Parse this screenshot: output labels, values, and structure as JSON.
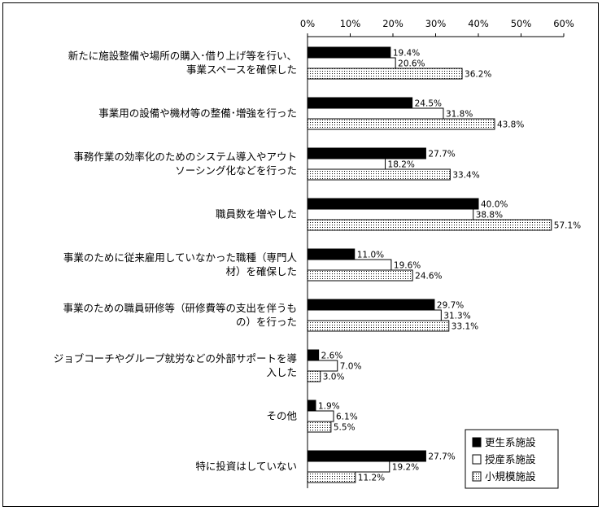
{
  "chart_data": {
    "type": "bar",
    "orientation": "horizontal",
    "xlim": [
      0,
      60
    ],
    "x_ticks": [
      "0%",
      "10%",
      "20%",
      "30%",
      "40%",
      "50%",
      "60%"
    ],
    "grid": false,
    "legend_position": "bottom-right",
    "categories": [
      [
        "新たに施設整備や場所の購入･借り上げ等を行い、",
        "事業スペースを確保した"
      ],
      [
        "事業用の設備や機材等の整備･増強を行った"
      ],
      [
        "事務作業の効率化のためのシステム導入やアウト",
        "ソーシング化などを行った"
      ],
      [
        "職員数を増やした"
      ],
      [
        "事業のために従来雇用していなかった職種（専門人",
        "材）を確保した"
      ],
      [
        "事業のための職員研修等（研修費等の支出を伴うも",
        "の）を行った"
      ],
      [
        "ジョブコーチやグループ就労などの外部サポートを導",
        "入した"
      ],
      [
        "その他"
      ],
      [
        "特に投資はしていない"
      ]
    ],
    "series": [
      {
        "name": "更生系施設",
        "fill": "solid",
        "color": "#000000",
        "values": [
          19.4,
          24.5,
          27.7,
          40.0,
          11.0,
          29.7,
          2.6,
          1.9,
          27.7
        ],
        "labels": [
          "19.4%",
          "24.5%",
          "27.7%",
          "40.0%",
          "11.0%",
          "29.7%",
          "2.6%",
          "1.9%",
          "27.7%"
        ]
      },
      {
        "name": "授産系施設",
        "fill": "white",
        "color": "#ffffff",
        "values": [
          20.6,
          31.8,
          18.2,
          38.8,
          19.6,
          31.3,
          7.0,
          6.1,
          19.2
        ],
        "labels": [
          "20.6%",
          "31.8%",
          "18.2%",
          "38.8%",
          "19.6%",
          "31.3%",
          "7.0%",
          "6.1%",
          "19.2%"
        ]
      },
      {
        "name": "小規模施設",
        "fill": "dotted",
        "color": "#ffffff",
        "values": [
          36.2,
          43.8,
          33.4,
          57.1,
          24.6,
          33.1,
          3.0,
          5.5,
          11.2
        ],
        "labels": [
          "36.2%",
          "43.8%",
          "33.4%",
          "57.1%",
          "24.6%",
          "33.1%",
          "3.0%",
          "5.5%",
          "11.2%"
        ]
      }
    ]
  }
}
